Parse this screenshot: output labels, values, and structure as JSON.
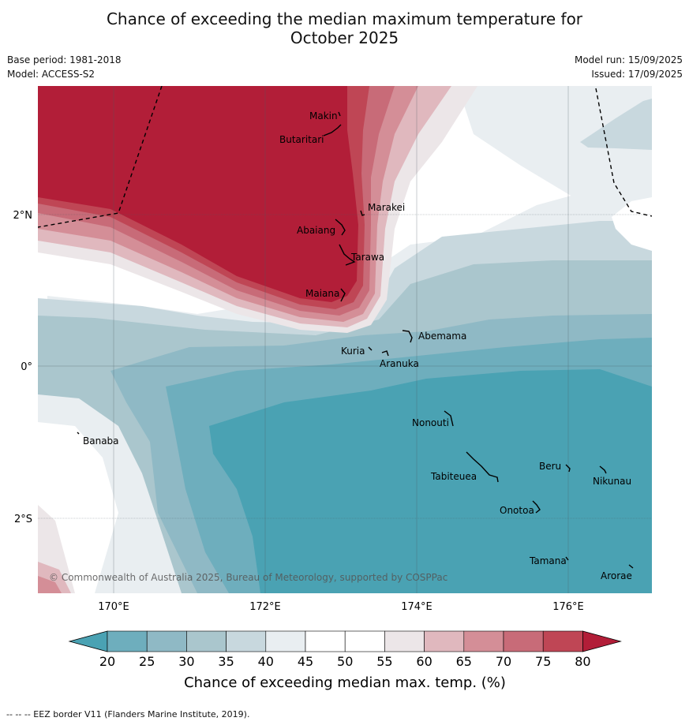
{
  "header": {
    "title_line1": "Chance of exceeding the median maximum temperature for",
    "title_line2": "October 2025",
    "base_period": "Base period: 1981-2018",
    "model": "Model: ACCESS-S2",
    "model_run": "Model run: 15/09/2025",
    "issued": "Issued: 17/09/2025"
  },
  "map": {
    "lon_ticks": [
      "170°E",
      "172°E",
      "174°E",
      "176°E"
    ],
    "lat_ticks": [
      "2°N",
      "0°",
      "2°S"
    ],
    "places": [
      "Makin",
      "Butaritari",
      "Marakei",
      "Abaiang",
      "Tarawa",
      "Maiana",
      "Abemama",
      "Kuria",
      "Aranuka",
      "Banaba",
      "Nonouti",
      "Tabiteuea",
      "Beru",
      "Nikunau",
      "Onotoa",
      "Tamana",
      "Arorae"
    ],
    "copyright": "© Commonwealth of Australia 2025, Bureau of Meteorology, supported by COSPPac"
  },
  "legend": {
    "ticks": [
      "20",
      "25",
      "30",
      "35",
      "40",
      "45",
      "50",
      "55",
      "60",
      "65",
      "70",
      "75",
      "80"
    ],
    "label": "Chance of exceeding median max. temp. (%)",
    "colors": [
      "#4aa2b3",
      "#6eaebd",
      "#8fb9c5",
      "#aac6cd",
      "#c8d8de",
      "#e9eef1",
      "#ffffff",
      "#ffffff",
      "#ece6e8",
      "#e0b8be",
      "#d48e97",
      "#c86b78",
      "#bf4655",
      "#b21e38"
    ]
  },
  "footer": {
    "eez_note": "--  --  -- EEZ border V11 (Flanders Marine Institute, 2019)."
  }
}
